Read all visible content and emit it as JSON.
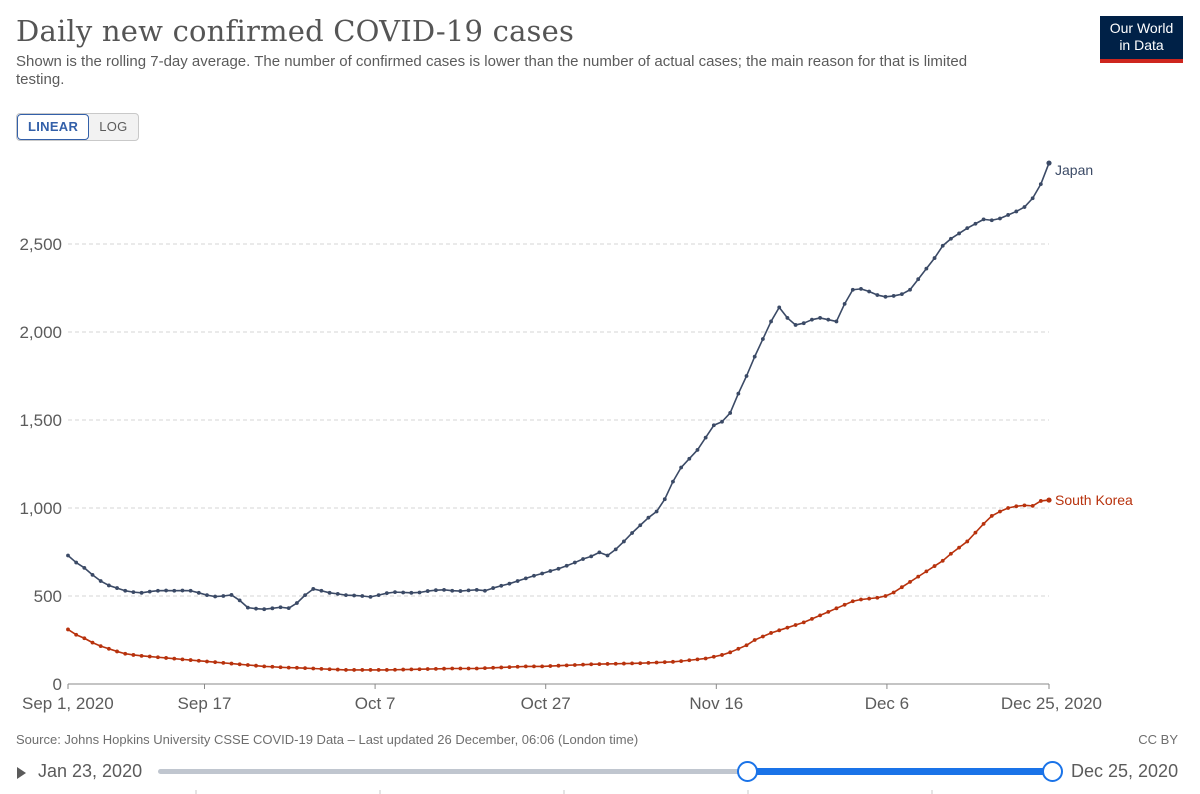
{
  "header": {
    "title": "Daily new confirmed COVID-19 cases",
    "subtitle": "Shown is the rolling 7-day average. The number of confirmed cases is lower than the number of actual cases; the main reason for that is limited testing.",
    "logo_line1": "Our World",
    "logo_line2": "in Data"
  },
  "controls": {
    "linear_label": "LINEAR",
    "log_label": "LOG",
    "active_scale": "linear"
  },
  "footer": {
    "source": "Source: Johns Hopkins University CSSE COVID-19 Data – Last updated 26 December, 06:06 (London time)",
    "license": "CC BY"
  },
  "timeline": {
    "start_label": "Jan 23, 2020",
    "end_label": "Dec 25, 2020",
    "selection_start_fraction": 0.659,
    "selection_end_fraction": 1.0
  },
  "colors": {
    "japan": "#3b4a66",
    "south_korea": "#b8320d",
    "grid": "#d6d6d6",
    "axis_text": "#5b5b5b",
    "accent": "#1a73e8"
  },
  "chart_data": {
    "type": "line",
    "title": "Daily new confirmed COVID-19 cases",
    "xlabel": "",
    "ylabel": "",
    "ylim": [
      0,
      3000
    ],
    "y_ticks": [
      0,
      500,
      1000,
      1500,
      2000,
      2500
    ],
    "y_tick_labels": [
      "0",
      "500",
      "1,000",
      "1,500",
      "2,000",
      "2,500"
    ],
    "x_tick_labels": [
      "Sep 1, 2020",
      "Sep 17",
      "Oct 7",
      "Oct 27",
      "Nov 16",
      "Dec 6",
      "Dec 25, 2020"
    ],
    "x_tick_days": [
      0,
      16,
      36,
      56,
      76,
      96,
      115
    ],
    "x_start": "2020-09-01",
    "x_end": "2020-12-25",
    "grid": true,
    "legend": "line-end labels",
    "series": [
      {
        "name": "Japan",
        "color": "#3b4a66",
        "values": [
          730,
          690,
          660,
          620,
          585,
          560,
          545,
          530,
          522,
          518,
          525,
          530,
          531,
          530,
          531,
          530,
          518,
          505,
          497,
          500,
          506,
          475,
          434,
          428,
          425,
          430,
          436,
          431,
          460,
          505,
          540,
          530,
          518,
          512,
          505,
          503,
          500,
          495,
          505,
          516,
          522,
          520,
          518,
          520,
          528,
          533,
          535,
          530,
          528,
          532,
          535,
          530,
          545,
          558,
          570,
          585,
          600,
          615,
          628,
          642,
          655,
          672,
          690,
          710,
          725,
          748,
          730,
          765,
          810,
          858,
          902,
          945,
          980,
          1050,
          1150,
          1230,
          1280,
          1330,
          1400,
          1470,
          1490,
          1540,
          1650,
          1750,
          1860,
          1960,
          2060,
          2140,
          2080,
          2040,
          2050,
          2070,
          2080,
          2070,
          2060,
          2160,
          2240,
          2245,
          2230,
          2210,
          2200,
          2205,
          2215,
          2240,
          2300,
          2360,
          2420,
          2490,
          2530,
          2560,
          2590,
          2615,
          2640,
          2635,
          2645,
          2665,
          2685,
          2710,
          2760,
          2840,
          2960
        ]
      },
      {
        "name": "South Korea",
        "color": "#b8320d",
        "values": [
          310,
          280,
          260,
          235,
          215,
          200,
          185,
          172,
          165,
          160,
          156,
          152,
          148,
          144,
          140,
          136,
          132,
          128,
          124,
          120,
          116,
          112,
          108,
          104,
          100,
          98,
          95,
          93,
          92,
          90,
          88,
          86,
          84,
          82,
          80,
          80,
          80,
          80,
          80,
          80,
          81,
          82,
          83,
          84,
          85,
          86,
          87,
          88,
          88,
          88,
          88,
          90,
          92,
          94,
          96,
          98,
          100,
          100,
          100,
          102,
          104,
          106,
          108,
          110,
          112,
          113,
          114,
          115,
          116,
          117,
          118,
          120,
          122,
          124,
          126,
          130,
          135,
          140,
          145,
          155,
          165,
          180,
          200,
          220,
          250,
          270,
          290,
          305,
          320,
          335,
          350,
          370,
          390,
          410,
          430,
          450,
          470,
          480,
          485,
          490,
          500,
          520,
          550,
          580,
          610,
          640,
          670,
          700,
          740,
          775,
          810,
          860,
          910,
          955,
          980,
          1000,
          1010,
          1015,
          1012,
          1040,
          1045
        ]
      }
    ]
  }
}
